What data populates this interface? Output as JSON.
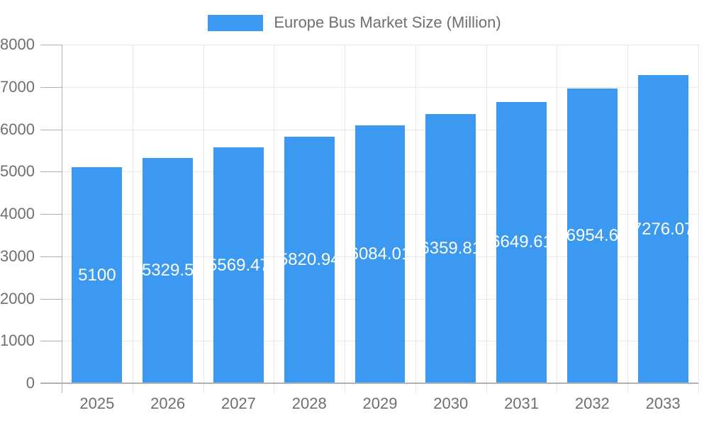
{
  "legend": {
    "label": "Europe Bus Market Size (Million)",
    "swatch_color": "#3b99f1"
  },
  "chart_data": {
    "type": "bar",
    "title": "Europe Bus Market Size (Million)",
    "xlabel": "",
    "ylabel": "",
    "categories": [
      "2025",
      "2026",
      "2027",
      "2028",
      "2029",
      "2030",
      "2031",
      "2032",
      "2033"
    ],
    "series": [
      {
        "name": "Europe Bus Market Size (Million)",
        "values": [
          5100,
          5329.5,
          5569.47,
          5820.94,
          6084.01,
          6359.81,
          6649.61,
          6954.6,
          7276.07
        ]
      }
    ],
    "bar_labels": [
      "5100",
      "5329.5",
      "5569.47",
      "5820.94",
      "6084.01",
      "6359.81",
      "6649.61",
      "6954.6",
      "7276.07"
    ],
    "ylim": [
      0,
      8000
    ],
    "y_ticks": [
      0,
      1000,
      2000,
      3000,
      4000,
      5000,
      6000,
      7000,
      8000
    ],
    "grid": true,
    "legend_position": "top",
    "colors": {
      "bar": "#3b99f1",
      "grid": "#e6e6e6",
      "axis": "#b0b0b0",
      "text": "#6f6f6f",
      "bar_label": "#ffffff",
      "background": "#ffffff"
    }
  }
}
